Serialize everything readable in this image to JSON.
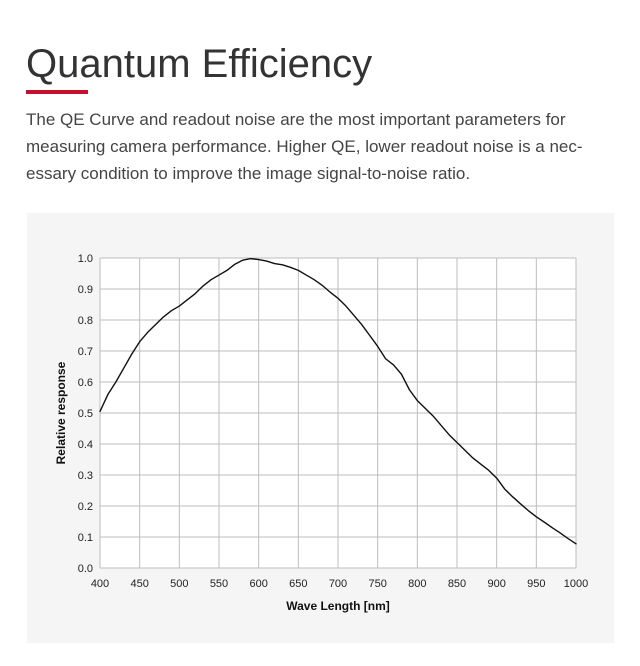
{
  "page": {
    "title": "Quantum Efficiency",
    "intro": "The QE Curve and readout noise are the most important parameters for measuring camera performance. Higher QE, lower readout noise is a nec-essary condition to improve the image signal-to-noise ratio.",
    "accent_color": "#c8102e"
  },
  "chart_data": {
    "type": "line",
    "title": "",
    "xlabel": "Wave Length [nm]",
    "ylabel": "Relative response",
    "xlim": [
      400,
      1000
    ],
    "ylim": [
      0,
      1.0
    ],
    "x_ticks": [
      400,
      450,
      500,
      550,
      600,
      650,
      700,
      750,
      800,
      850,
      900,
      950,
      1000
    ],
    "y_ticks": [
      0.0,
      0.1,
      0.2,
      0.3,
      0.4,
      0.5,
      0.6,
      0.7,
      0.8,
      0.9,
      1.0
    ],
    "grid": true,
    "line_color": "#111111",
    "series": [
      {
        "x": [
          400,
          410,
          420,
          430,
          440,
          450,
          460,
          470,
          480,
          490,
          500,
          510,
          520,
          530,
          540,
          550,
          560,
          570,
          580,
          590,
          600,
          610,
          620,
          630,
          640,
          650,
          660,
          670,
          680,
          690,
          700,
          710,
          720,
          730,
          740,
          750,
          760,
          770,
          780,
          790,
          800,
          810,
          820,
          830,
          840,
          850,
          860,
          870,
          880,
          890,
          900,
          910,
          920,
          930,
          940,
          950,
          960,
          970,
          980,
          990,
          1000
        ],
        "y": [
          0.505,
          0.56,
          0.6,
          0.645,
          0.69,
          0.73,
          0.76,
          0.785,
          0.81,
          0.83,
          0.845,
          0.865,
          0.885,
          0.91,
          0.93,
          0.945,
          0.96,
          0.98,
          0.993,
          0.998,
          0.995,
          0.99,
          0.982,
          0.978,
          0.97,
          0.96,
          0.945,
          0.93,
          0.912,
          0.89,
          0.87,
          0.845,
          0.815,
          0.785,
          0.75,
          0.715,
          0.675,
          0.655,
          0.625,
          0.575,
          0.54,
          0.515,
          0.49,
          0.46,
          0.43,
          0.405,
          0.38,
          0.355,
          0.335,
          0.315,
          0.29,
          0.255,
          0.23,
          0.207,
          0.185,
          0.165,
          0.148,
          0.13,
          0.113,
          0.095,
          0.078
        ]
      }
    ]
  }
}
